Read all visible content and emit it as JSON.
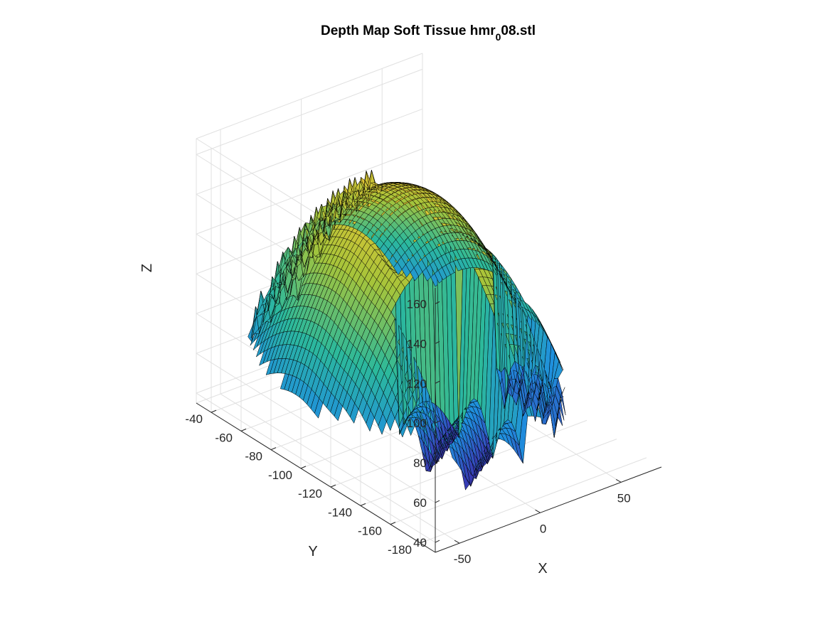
{
  "chart_data": {
    "type": "surface",
    "title": {
      "prefix": "Depth Map Soft Tissue hmr",
      "subscript": "0",
      "suffix": "08.stl"
    },
    "xlabel": "X",
    "ylabel": "Y",
    "zlabel": "Z",
    "x_ticks": [
      -50,
      0,
      50
    ],
    "y_ticks": [
      -40,
      -60,
      -80,
      -100,
      -120,
      -140,
      -160,
      -180
    ],
    "z_ticks": [
      40,
      60,
      80,
      100,
      120,
      140,
      160
    ],
    "xlim": [
      -65,
      75
    ],
    "ylim": [
      -190,
      -30
    ],
    "zlim": [
      35,
      168
    ],
    "z_range_on_surface": [
      40,
      155
    ],
    "colormap": "parula",
    "grid": true,
    "edge_color": "#000000",
    "colors": {
      "low": "#3e26a8",
      "mid_low": "#1f8fde",
      "mid": "#2cb99b",
      "mid_high": "#a6c43a",
      "high": "#f5c532"
    }
  }
}
